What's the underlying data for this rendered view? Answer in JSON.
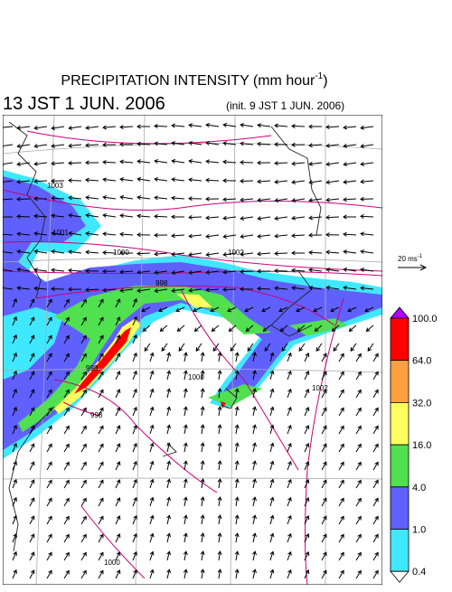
{
  "title": {
    "main": "PRECIPITATION INTENSITY (mm hour",
    "exponent": "-1",
    "close": ")"
  },
  "valid_time": "13 JST 1 JUN. 2006",
  "init_time": "(init. 9 JST 1 JUN. 2006)",
  "vector_legend": {
    "label": "20 ms",
    "exponent": "-1"
  },
  "colorbar": {
    "ticks": [
      "100.0",
      "64.0",
      "32.0",
      "16.0",
      "4.0",
      "1.0",
      "0.4"
    ],
    "colors": [
      "#ff0000",
      "#ffa040",
      "#ffff60",
      "#50e050",
      "#6060ff",
      "#40e8ff"
    ],
    "over_color": "#b000ff",
    "under_color": "#ffffff"
  },
  "isobar_labels": [
    "1003",
    "1001",
    "1000",
    "1002",
    "998",
    "998",
    "1000",
    "1002",
    "998",
    "1000"
  ]
}
